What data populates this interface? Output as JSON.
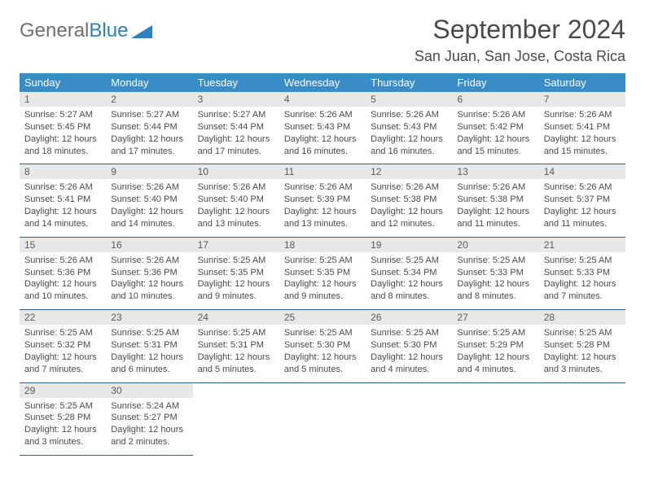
{
  "logo": {
    "word1": "General",
    "word2": "Blue"
  },
  "title": "September 2024",
  "location": "San Juan, San Jose, Costa Rica",
  "colors": {
    "header_bg": "#3a8cc9",
    "header_text": "#ffffff",
    "daynum_bg": "#e8e8e8",
    "row_border": "#2f5f85",
    "logo_gray": "#707070",
    "logo_blue": "#2f7fc1",
    "body_text": "#4a4a4a"
  },
  "weekdays": [
    "Sunday",
    "Monday",
    "Tuesday",
    "Wednesday",
    "Thursday",
    "Friday",
    "Saturday"
  ],
  "weeks": [
    [
      {
        "n": "1",
        "sr": "Sunrise: 5:27 AM",
        "ss": "Sunset: 5:45 PM",
        "d1": "Daylight: 12 hours",
        "d2": "and 18 minutes."
      },
      {
        "n": "2",
        "sr": "Sunrise: 5:27 AM",
        "ss": "Sunset: 5:44 PM",
        "d1": "Daylight: 12 hours",
        "d2": "and 17 minutes."
      },
      {
        "n": "3",
        "sr": "Sunrise: 5:27 AM",
        "ss": "Sunset: 5:44 PM",
        "d1": "Daylight: 12 hours",
        "d2": "and 17 minutes."
      },
      {
        "n": "4",
        "sr": "Sunrise: 5:26 AM",
        "ss": "Sunset: 5:43 PM",
        "d1": "Daylight: 12 hours",
        "d2": "and 16 minutes."
      },
      {
        "n": "5",
        "sr": "Sunrise: 5:26 AM",
        "ss": "Sunset: 5:43 PM",
        "d1": "Daylight: 12 hours",
        "d2": "and 16 minutes."
      },
      {
        "n": "6",
        "sr": "Sunrise: 5:26 AM",
        "ss": "Sunset: 5:42 PM",
        "d1": "Daylight: 12 hours",
        "d2": "and 15 minutes."
      },
      {
        "n": "7",
        "sr": "Sunrise: 5:26 AM",
        "ss": "Sunset: 5:41 PM",
        "d1": "Daylight: 12 hours",
        "d2": "and 15 minutes."
      }
    ],
    [
      {
        "n": "8",
        "sr": "Sunrise: 5:26 AM",
        "ss": "Sunset: 5:41 PM",
        "d1": "Daylight: 12 hours",
        "d2": "and 14 minutes."
      },
      {
        "n": "9",
        "sr": "Sunrise: 5:26 AM",
        "ss": "Sunset: 5:40 PM",
        "d1": "Daylight: 12 hours",
        "d2": "and 14 minutes."
      },
      {
        "n": "10",
        "sr": "Sunrise: 5:26 AM",
        "ss": "Sunset: 5:40 PM",
        "d1": "Daylight: 12 hours",
        "d2": "and 13 minutes."
      },
      {
        "n": "11",
        "sr": "Sunrise: 5:26 AM",
        "ss": "Sunset: 5:39 PM",
        "d1": "Daylight: 12 hours",
        "d2": "and 13 minutes."
      },
      {
        "n": "12",
        "sr": "Sunrise: 5:26 AM",
        "ss": "Sunset: 5:38 PM",
        "d1": "Daylight: 12 hours",
        "d2": "and 12 minutes."
      },
      {
        "n": "13",
        "sr": "Sunrise: 5:26 AM",
        "ss": "Sunset: 5:38 PM",
        "d1": "Daylight: 12 hours",
        "d2": "and 11 minutes."
      },
      {
        "n": "14",
        "sr": "Sunrise: 5:26 AM",
        "ss": "Sunset: 5:37 PM",
        "d1": "Daylight: 12 hours",
        "d2": "and 11 minutes."
      }
    ],
    [
      {
        "n": "15",
        "sr": "Sunrise: 5:26 AM",
        "ss": "Sunset: 5:36 PM",
        "d1": "Daylight: 12 hours",
        "d2": "and 10 minutes."
      },
      {
        "n": "16",
        "sr": "Sunrise: 5:26 AM",
        "ss": "Sunset: 5:36 PM",
        "d1": "Daylight: 12 hours",
        "d2": "and 10 minutes."
      },
      {
        "n": "17",
        "sr": "Sunrise: 5:25 AM",
        "ss": "Sunset: 5:35 PM",
        "d1": "Daylight: 12 hours",
        "d2": "and 9 minutes."
      },
      {
        "n": "18",
        "sr": "Sunrise: 5:25 AM",
        "ss": "Sunset: 5:35 PM",
        "d1": "Daylight: 12 hours",
        "d2": "and 9 minutes."
      },
      {
        "n": "19",
        "sr": "Sunrise: 5:25 AM",
        "ss": "Sunset: 5:34 PM",
        "d1": "Daylight: 12 hours",
        "d2": "and 8 minutes."
      },
      {
        "n": "20",
        "sr": "Sunrise: 5:25 AM",
        "ss": "Sunset: 5:33 PM",
        "d1": "Daylight: 12 hours",
        "d2": "and 8 minutes."
      },
      {
        "n": "21",
        "sr": "Sunrise: 5:25 AM",
        "ss": "Sunset: 5:33 PM",
        "d1": "Daylight: 12 hours",
        "d2": "and 7 minutes."
      }
    ],
    [
      {
        "n": "22",
        "sr": "Sunrise: 5:25 AM",
        "ss": "Sunset: 5:32 PM",
        "d1": "Daylight: 12 hours",
        "d2": "and 7 minutes."
      },
      {
        "n": "23",
        "sr": "Sunrise: 5:25 AM",
        "ss": "Sunset: 5:31 PM",
        "d1": "Daylight: 12 hours",
        "d2": "and 6 minutes."
      },
      {
        "n": "24",
        "sr": "Sunrise: 5:25 AM",
        "ss": "Sunset: 5:31 PM",
        "d1": "Daylight: 12 hours",
        "d2": "and 5 minutes."
      },
      {
        "n": "25",
        "sr": "Sunrise: 5:25 AM",
        "ss": "Sunset: 5:30 PM",
        "d1": "Daylight: 12 hours",
        "d2": "and 5 minutes."
      },
      {
        "n": "26",
        "sr": "Sunrise: 5:25 AM",
        "ss": "Sunset: 5:30 PM",
        "d1": "Daylight: 12 hours",
        "d2": "and 4 minutes."
      },
      {
        "n": "27",
        "sr": "Sunrise: 5:25 AM",
        "ss": "Sunset: 5:29 PM",
        "d1": "Daylight: 12 hours",
        "d2": "and 4 minutes."
      },
      {
        "n": "28",
        "sr": "Sunrise: 5:25 AM",
        "ss": "Sunset: 5:28 PM",
        "d1": "Daylight: 12 hours",
        "d2": "and 3 minutes."
      }
    ],
    [
      {
        "n": "29",
        "sr": "Sunrise: 5:25 AM",
        "ss": "Sunset: 5:28 PM",
        "d1": "Daylight: 12 hours",
        "d2": "and 3 minutes."
      },
      {
        "n": "30",
        "sr": "Sunrise: 5:24 AM",
        "ss": "Sunset: 5:27 PM",
        "d1": "Daylight: 12 hours",
        "d2": "and 2 minutes."
      },
      null,
      null,
      null,
      null,
      null
    ]
  ]
}
